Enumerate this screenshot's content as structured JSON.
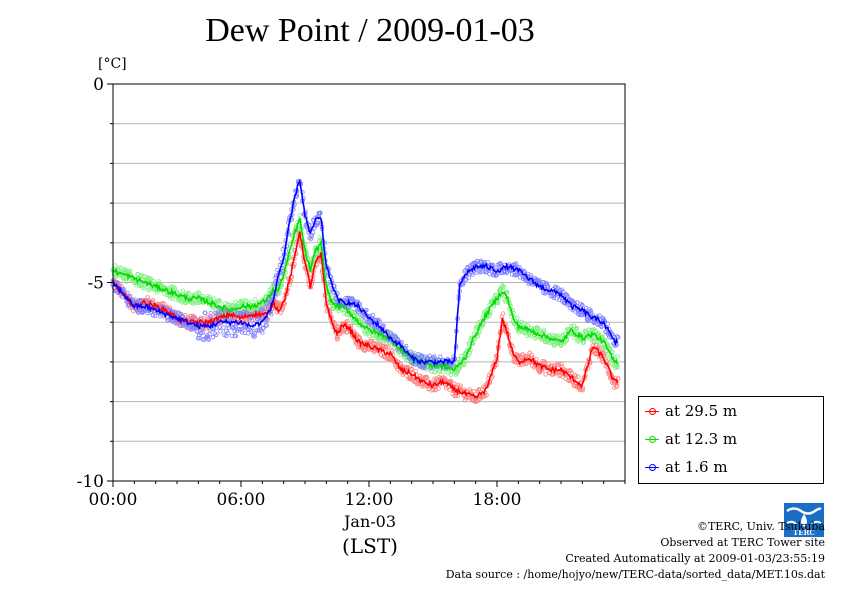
{
  "chart_data": {
    "type": "line",
    "title": "Dew Point / 2009-01-03",
    "ylabel": "[°C]",
    "xlabel": "(LST)",
    "x_date_label": "Jan-03",
    "ylim": [
      -10,
      0
    ],
    "xlim_hours": [
      0,
      24
    ],
    "y_ticks": [
      0,
      -5,
      -10
    ],
    "y_tick_labels": [
      "0",
      "-5",
      "-10"
    ],
    "x_ticks_hours": [
      0,
      6,
      12,
      18
    ],
    "x_tick_labels": [
      "00:00",
      "06:00",
      "12:00",
      "18:00"
    ],
    "grid": true,
    "legend_position": "bottom-right",
    "series": [
      {
        "name": "at 29.5 m",
        "color": "#ff0000",
        "x": [
          0,
          0.5,
          1,
          1.5,
          2,
          2.5,
          3,
          3.5,
          4,
          4.5,
          5,
          5.5,
          6,
          6.5,
          7,
          7.25,
          7.5,
          7.75,
          8,
          8.25,
          8.5,
          8.75,
          9,
          9.25,
          9.5,
          9.75,
          10,
          10.25,
          10.5,
          10.75,
          11,
          11.5,
          12,
          12.5,
          13,
          13.5,
          14,
          14.5,
          15,
          15.5,
          16,
          16.5,
          17,
          17.5,
          18,
          18.25,
          18.5,
          18.75,
          19,
          19.5,
          20,
          20.5,
          21,
          21.5,
          22,
          22.5,
          23,
          23.5
        ],
        "y": [
          -5.0,
          -5.3,
          -5.6,
          -5.5,
          -5.6,
          -5.7,
          -5.9,
          -6.0,
          -6.0,
          -6.0,
          -5.9,
          -5.8,
          -5.9,
          -5.8,
          -5.8,
          -5.8,
          -5.5,
          -5.7,
          -5.5,
          -5.0,
          -4.4,
          -3.7,
          -4.5,
          -5.1,
          -4.5,
          -4.3,
          -5.5,
          -6.0,
          -6.3,
          -6.1,
          -6.1,
          -6.5,
          -6.6,
          -6.7,
          -6.8,
          -7.2,
          -7.3,
          -7.5,
          -7.6,
          -7.5,
          -7.7,
          -7.8,
          -7.9,
          -7.7,
          -6.9,
          -5.9,
          -6.3,
          -6.8,
          -7.0,
          -6.9,
          -7.1,
          -7.2,
          -7.2,
          -7.4,
          -7.6,
          -6.6,
          -6.9,
          -7.5
        ]
      },
      {
        "name": "at 12.3 m",
        "color": "#00dd00",
        "x": [
          0,
          0.5,
          1,
          1.5,
          2,
          2.5,
          3,
          3.5,
          4,
          4.5,
          5,
          5.5,
          6,
          6.5,
          7,
          7.25,
          7.5,
          7.75,
          8,
          8.25,
          8.5,
          8.75,
          9,
          9.25,
          9.5,
          9.75,
          10,
          10.25,
          10.5,
          10.75,
          11,
          11.5,
          12,
          12.5,
          13,
          13.5,
          14,
          14.5,
          15,
          15.5,
          16,
          16.5,
          17,
          17.5,
          18,
          18.25,
          18.5,
          18.75,
          19,
          19.5,
          20,
          20.5,
          21,
          21.5,
          22,
          22.5,
          23,
          23.5
        ],
        "y": [
          -4.7,
          -4.8,
          -4.9,
          -5.0,
          -5.1,
          -5.2,
          -5.3,
          -5.4,
          -5.4,
          -5.5,
          -5.6,
          -5.7,
          -5.6,
          -5.6,
          -5.5,
          -5.4,
          -5.2,
          -5.2,
          -4.8,
          -4.3,
          -3.8,
          -3.4,
          -4.2,
          -4.7,
          -4.2,
          -4.0,
          -5.1,
          -5.5,
          -5.6,
          -5.6,
          -5.7,
          -6.0,
          -6.2,
          -6.3,
          -6.4,
          -6.7,
          -6.9,
          -7.0,
          -7.1,
          -7.1,
          -7.2,
          -6.9,
          -6.3,
          -5.8,
          -5.4,
          -5.2,
          -5.4,
          -5.9,
          -6.1,
          -6.2,
          -6.3,
          -6.4,
          -6.5,
          -6.2,
          -6.4,
          -6.3,
          -6.5,
          -7.0
        ]
      },
      {
        "name": "at 1.6 m",
        "color": "#0000ff",
        "x": [
          0,
          0.5,
          1,
          1.5,
          2,
          2.5,
          3,
          3.5,
          4,
          4.5,
          5,
          5.5,
          6,
          6.5,
          7,
          7.25,
          7.5,
          7.75,
          8,
          8.25,
          8.5,
          8.75,
          9,
          9.25,
          9.5,
          9.75,
          10,
          10.25,
          10.5,
          10.75,
          11,
          11.5,
          12,
          12.5,
          13,
          13.5,
          14,
          14.5,
          15,
          15.5,
          16,
          16.25,
          16.5,
          17,
          17.5,
          18,
          18.5,
          19,
          19.5,
          20,
          20.5,
          21,
          21.5,
          22,
          22.5,
          23,
          23.5
        ],
        "y": [
          -5.0,
          -5.3,
          -5.6,
          -5.6,
          -5.7,
          -5.8,
          -5.9,
          -6.0,
          -6.1,
          -6.1,
          -6.0,
          -6.0,
          -6.0,
          -6.1,
          -6.0,
          -5.8,
          -5.5,
          -4.8,
          -4.4,
          -3.6,
          -2.9,
          -2.4,
          -3.3,
          -3.8,
          -3.4,
          -3.4,
          -4.6,
          -5.0,
          -5.4,
          -5.5,
          -5.5,
          -5.6,
          -5.9,
          -6.1,
          -6.4,
          -6.6,
          -6.9,
          -7.0,
          -7.0,
          -7.0,
          -7.0,
          -5.1,
          -4.8,
          -4.6,
          -4.6,
          -4.7,
          -4.6,
          -4.7,
          -4.9,
          -5.1,
          -5.2,
          -5.3,
          -5.6,
          -5.7,
          -5.9,
          -6.0,
          -6.5
        ]
      }
    ]
  },
  "credits": {
    "copyright": "©TERC, Univ. Tsukuba",
    "observed": "Observed at TERC Tower site",
    "created": "Created Automatically at 2009-01-03/23:55:19",
    "source": "Data source : /home/hojyo/new/TERC-data/sorted_data/MET.10s.dat"
  },
  "logo": {
    "icon": "terc-logo-icon",
    "text": "TERC"
  }
}
